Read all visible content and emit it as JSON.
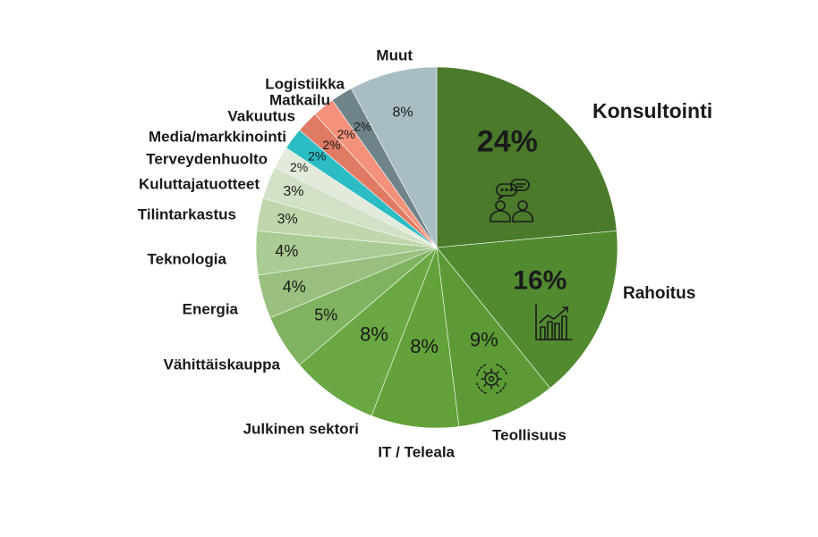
{
  "chart_data": {
    "type": "pie",
    "title": "",
    "slices": [
      {
        "label": "Konsultointi",
        "value": 24,
        "value_label": "24%",
        "color": "#4a7a2a",
        "icon": "people-chat-icon"
      },
      {
        "label": "Rahoitus",
        "value": 16,
        "value_label": "16%",
        "color": "#528a30",
        "icon": "bar-chart-growth-icon"
      },
      {
        "label": "Teollisuus",
        "value": 9,
        "value_label": "9%",
        "color": "#5c9a35",
        "icon": "gear-cycle-icon"
      },
      {
        "label": "IT / Teleala",
        "value": 8,
        "value_label": "8%",
        "color": "#63a23a"
      },
      {
        "label": "Julkinen sektori",
        "value": 8,
        "value_label": "8%",
        "color": "#6aa843"
      },
      {
        "label": "Vähittäiskauppa",
        "value": 5,
        "value_label": "5%",
        "color": "#80b25f"
      },
      {
        "label": "Energia",
        "value": 4,
        "value_label": "4%",
        "color": "#99c07f"
      },
      {
        "label": "Teknologia",
        "value": 4,
        "value_label": "4%",
        "color": "#aacb94"
      },
      {
        "label": "Tilintarkastus",
        "value": 3,
        "value_label": "3%",
        "color": "#c0d7ae"
      },
      {
        "label": "Kuluttajatuotteet",
        "value": 3,
        "value_label": "3%",
        "color": "#d2e1c6"
      },
      {
        "label": "Terveydenhuolto",
        "value": 2,
        "value_label": "2%",
        "color": "#e2ebdb"
      },
      {
        "label": "Media/markkinointi",
        "value": 2,
        "value_label": "2%",
        "color": "#2bbcc4"
      },
      {
        "label": "Vakuutus",
        "value": 2,
        "value_label": "2%",
        "color": "#e07a63"
      },
      {
        "label": "Matkailu",
        "value": 2,
        "value_label": "2%",
        "color": "#f4917a"
      },
      {
        "label": "Logistiikka",
        "value": 2,
        "value_label": "2%",
        "color": "#6f8488"
      },
      {
        "label": "Muut",
        "value": 8,
        "value_label": "8%",
        "color": "#a8bec3"
      }
    ]
  }
}
